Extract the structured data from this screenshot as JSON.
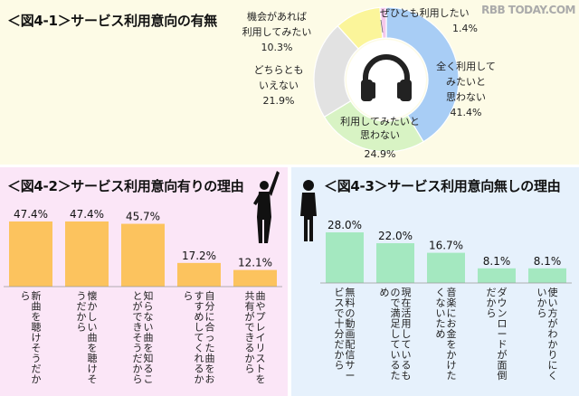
{
  "watermark": "RBB TODAY.COM",
  "chart_data": [
    {
      "type": "pie",
      "title": "＜図4-1＞サービス利用意向の有無",
      "slices": [
        {
          "label": [
            "全く利用して",
            "みたいと",
            "思わない"
          ],
          "value": 41.4,
          "display": "41.4%",
          "color": "#a8cdf5"
        },
        {
          "label": [
            "利用してみたいと",
            "思わない"
          ],
          "value": 24.9,
          "display": "24.9%",
          "color": "#d8f3c4"
        },
        {
          "label": [
            "どちらとも",
            "いえない"
          ],
          "value": 21.9,
          "display": "21.9%",
          "color": "#e2e2e2"
        },
        {
          "label": [
            "機会があれば",
            "利用してみたい"
          ],
          "value": 10.3,
          "display": "10.3%",
          "color": "#fbf59a"
        },
        {
          "label": [
            "ぜひとも利用したい"
          ],
          "value": 1.4,
          "display": "1.4%",
          "color": "#f5c8ec"
        }
      ]
    },
    {
      "type": "bar",
      "title": "＜図4-2＞サービス利用意向有りの理由",
      "categories": [
        "新曲を聴けそうだから",
        "懐かしい曲を聴けそうだから",
        "知らない曲を知ることができそうだから",
        "自分に合った曲をおすすめしてくれるから",
        "曲やプレイリストを共有ができるから"
      ],
      "values": [
        47.4,
        47.4,
        45.7,
        17.2,
        12.1
      ],
      "display": [
        "47.4%",
        "47.4%",
        "45.7%",
        "17.2%",
        "12.1%"
      ],
      "ylim": [
        0,
        50
      ],
      "color": "#fcc35e"
    },
    {
      "type": "bar",
      "title": "＜図4-3＞サービス利用意向無しの理由",
      "categories": [
        "無料の動画配信サービスで十分だから",
        "現在活用しているもので満足しているため",
        "音楽にお金をかけたくないため",
        "ダウンロードが面倒だから",
        "使い方がわかりにくいから"
      ],
      "values": [
        28.0,
        22.0,
        16.7,
        8.1,
        8.1
      ],
      "display": [
        "28.0%",
        "22.0%",
        "16.7%",
        "8.1%",
        "8.1%"
      ],
      "ylim": [
        0,
        30
      ],
      "color": "#a4e8c0"
    }
  ]
}
